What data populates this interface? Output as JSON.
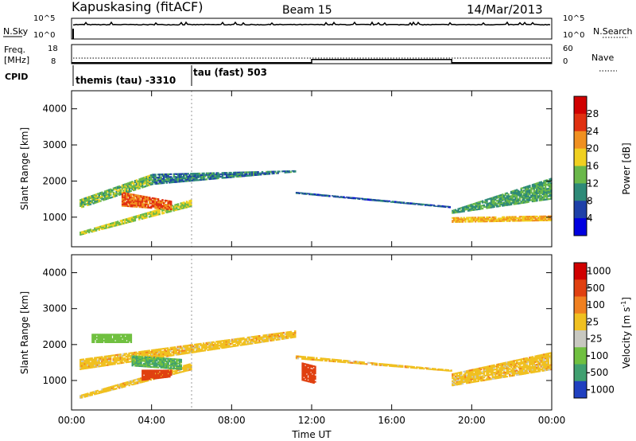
{
  "header": {
    "site": "Kapuskasing (fitACF)",
    "beam": "Beam 15",
    "date": "14/Mar/2013"
  },
  "noise_panel": {
    "left_label": "N.Sky",
    "right_label": "N.Search",
    "left_ticks": [
      "10^5",
      "10^0"
    ],
    "right_ticks": [
      "10^5",
      "10^0"
    ]
  },
  "freq_panel": {
    "left_label_1": "Freq.",
    "left_label_2": "[MHz]",
    "right_label": "Nave",
    "left_ticks": [
      "18",
      "8"
    ],
    "right_ticks": [
      "60",
      "0"
    ],
    "nave_steps": [
      {
        "from": "00:00",
        "to": "12:00",
        "value": 3
      },
      {
        "from": "12:00",
        "to": "19:00",
        "value": 13
      },
      {
        "from": "19:00",
        "to": "24:00",
        "value": 3
      }
    ]
  },
  "cpid": {
    "label": "CPID",
    "modes": [
      "themis (tau) -3310",
      "tau (fast) 503"
    ],
    "change_time": "06:00"
  },
  "axes": {
    "xlabel": "Time UT",
    "x_ticks": [
      "00:00",
      "04:00",
      "08:00",
      "12:00",
      "16:00",
      "20:00",
      "00:00"
    ],
    "ylabel": "Slant Range [km]",
    "y_ticks": [
      "1000",
      "2000",
      "3000",
      "4000"
    ]
  },
  "power_scale": {
    "label": "Power [dB]",
    "ticks": [
      "28",
      "24",
      "20",
      "16",
      "12",
      "8",
      "4"
    ],
    "colors": [
      "#0000e0",
      "#1e40a8",
      "#2e8a78",
      "#6ab84a",
      "#f0d020",
      "#f09020",
      "#e03010",
      "#d00000"
    ]
  },
  "velocity_scale": {
    "label": "Velocity [m s",
    "label_sup": "-1",
    "label_end": "]",
    "ticks": [
      "1000",
      "500",
      "100",
      "25",
      "-25",
      "-100",
      "-500",
      "-1000"
    ],
    "colors": [
      "#2040c0",
      "#40a070",
      "#70c040",
      "#c8c8c0",
      "#f0c020",
      "#f08020",
      "#e04010",
      "#d00000"
    ]
  },
  "chart_data": [
    {
      "type": "line",
      "title": "N.Sky / N.Search",
      "x_range_hours": [
        0,
        24
      ],
      "y_scale": "log",
      "ylim": [
        1,
        100000
      ],
      "series": [
        {
          "name": "N.Sky",
          "level": 3000
        }
      ]
    },
    {
      "type": "line",
      "title": "Freq. / Nave",
      "x_range_hours": [
        0,
        24
      ],
      "ylim_freq_mhz": [
        8,
        18
      ],
      "ylim_nave": [
        0,
        60
      ],
      "series": [
        {
          "name": "Freq.",
          "level_mhz": 10.5,
          "x": [
            0,
            12,
            12,
            19,
            19,
            24
          ],
          "y_nave": [
            3,
            3,
            13,
            13,
            3,
            3
          ]
        }
      ]
    },
    {
      "type": "heatmap",
      "title": "Power",
      "x_range_hours": [
        0,
        24
      ],
      "ylim_km": [
        180,
        4500
      ],
      "bands": [
        {
          "t": [
            0.4,
            4.0
          ],
          "r_start": [
            1250,
            1900
          ],
          "r_end": [
            1500,
            2200
          ],
          "value_db": 14
        },
        {
          "t": [
            4.0,
            11.2
          ],
          "r_start": [
            1900,
            2250
          ],
          "r_end": [
            2200,
            2300
          ],
          "value_db": 9
        },
        {
          "t": [
            11.2,
            19.0
          ],
          "r_start": [
            1650,
            1250
          ],
          "r_end": [
            1700,
            1300
          ],
          "value_db": 7
        },
        {
          "t": [
            19.0,
            24.0
          ],
          "r_start": [
            1100,
            1500
          ],
          "r_end": [
            1200,
            2100
          ],
          "value_db": 12
        },
        {
          "t": [
            0.4,
            6.0
          ],
          "r_start": [
            500,
            1300
          ],
          "r_end": [
            600,
            1500
          ],
          "value_db": 16
        },
        {
          "t": [
            2.5,
            5.0
          ],
          "r_start": [
            1300,
            1200
          ],
          "r_end": [
            1700,
            1450
          ],
          "value_db": 24
        },
        {
          "t": [
            19.0,
            24.0
          ],
          "r_start": [
            850,
            900
          ],
          "r_end": [
            1000,
            1050
          ],
          "value_db": 20
        }
      ]
    },
    {
      "type": "heatmap",
      "title": "Velocity",
      "x_range_hours": [
        0,
        24
      ],
      "ylim_km": [
        180,
        4500
      ],
      "bands": [
        {
          "t": [
            0.4,
            11.2
          ],
          "r_start": [
            1300,
            2200
          ],
          "r_end": [
            1600,
            2400
          ],
          "value_ms": 0
        },
        {
          "t": [
            11.2,
            19.0
          ],
          "r_start": [
            1600,
            1250
          ],
          "r_end": [
            1700,
            1300
          ],
          "value_ms": 0
        },
        {
          "t": [
            19.0,
            24.0
          ],
          "r_start": [
            850,
            1300
          ],
          "r_end": [
            1200,
            1800
          ],
          "value_ms": 0
        },
        {
          "t": [
            0.4,
            6.0
          ],
          "r_start": [
            500,
            1300
          ],
          "r_end": [
            600,
            1500
          ],
          "value_ms": 0
        },
        {
          "t": [
            1.0,
            3.0
          ],
          "r_start": [
            2050,
            2050
          ],
          "r_end": [
            2300,
            2300
          ],
          "value_ms": 300
        },
        {
          "t": [
            3.0,
            5.5
          ],
          "r_start": [
            1400,
            1300
          ],
          "r_end": [
            1700,
            1600
          ],
          "value_ms": 500
        },
        {
          "t": [
            3.5,
            5.0
          ],
          "r_start": [
            1000,
            1100
          ],
          "r_end": [
            1300,
            1300
          ],
          "value_ms": -400
        },
        {
          "t": [
            11.5,
            12.2
          ],
          "r_start": [
            1000,
            900
          ],
          "r_end": [
            1500,
            1400
          ],
          "value_ms": -200
        }
      ]
    }
  ]
}
